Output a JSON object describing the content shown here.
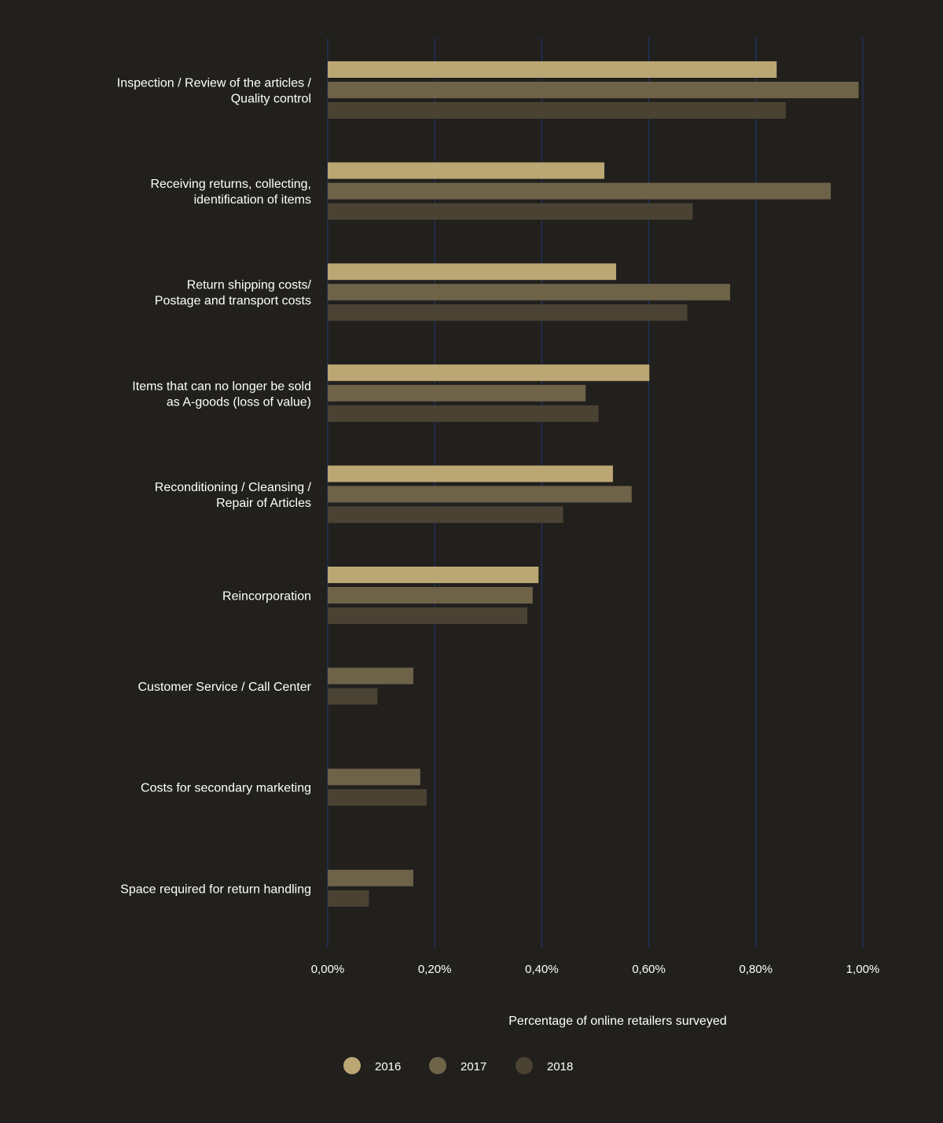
{
  "chart_data": {
    "type": "bar",
    "orientation": "horizontal",
    "xlabel": "Percentage of online retailers surveyed",
    "xlim": [
      0,
      1.0
    ],
    "x_ticks": [
      0,
      0.2,
      0.4,
      0.6,
      0.8,
      1.0
    ],
    "x_tick_labels": [
      "0,00%",
      "0,20%",
      "0,40%",
      "0,60%",
      "0,80%",
      "1,00%"
    ],
    "grid": "vertical",
    "legend_position": "bottom",
    "categories": [
      [
        "Inspection / Review of the articles /",
        "Quality control"
      ],
      [
        "Receiving returns, collecting,",
        "identification of items"
      ],
      [
        "Return shipping costs/",
        "Postage and transport costs"
      ],
      [
        "Items that can no longer be sold",
        "as A-goods (loss of value)"
      ],
      [
        "Reconditioning / Cleansing /",
        "Repair of Articles"
      ],
      [
        "Reincorporation"
      ],
      [
        "Customer Service / Call Center"
      ],
      [
        "Costs for secondary marketing"
      ],
      [
        "Space required for return handling"
      ]
    ],
    "series": [
      {
        "name": "2016",
        "color": "#bba773",
        "values": [
          0.839,
          0.517,
          0.539,
          0.601,
          0.533,
          0.394,
          null,
          null,
          null
        ]
      },
      {
        "name": "2017",
        "color": "#6e6249",
        "values": [
          0.992,
          0.94,
          0.752,
          0.482,
          0.568,
          0.383,
          0.16,
          0.173,
          0.16
        ]
      },
      {
        "name": "2018",
        "color": "#4a4233",
        "values": [
          0.856,
          0.682,
          0.672,
          0.506,
          0.44,
          0.373,
          0.093,
          0.185,
          0.077
        ]
      }
    ]
  }
}
